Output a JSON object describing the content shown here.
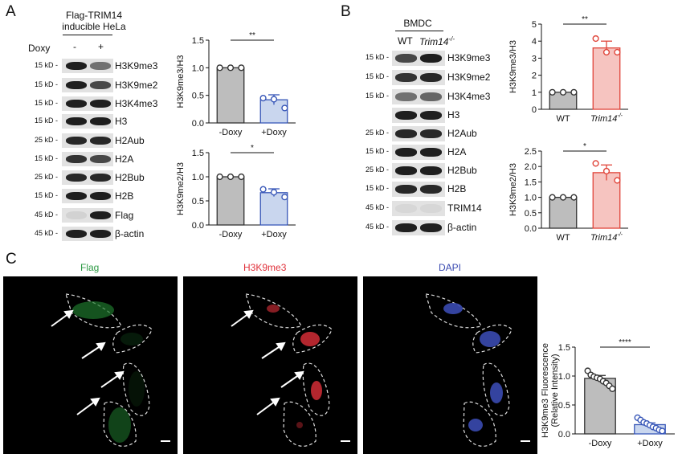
{
  "panels": {
    "A": "A",
    "B": "B",
    "C": "C"
  },
  "panel_a": {
    "title_line1": "Flag-TRIM14",
    "title_line2": "inducible HeLa",
    "doxy_label": "Doxy",
    "minus": "-",
    "plus": "+",
    "blots": [
      {
        "kd": "15 kD -",
        "protein": "H3K9me3"
      },
      {
        "kd": "15 kD -",
        "protein": "H3K9me2"
      },
      {
        "kd": "15 kD -",
        "protein": "H3K4me3"
      },
      {
        "kd": "15 kD -",
        "protein": "H3"
      },
      {
        "kd": "25 kD -",
        "protein": "H2Aub"
      },
      {
        "kd": "15 kD -",
        "protein": "H2A"
      },
      {
        "kd": "25 kD -",
        "protein": "H2Bub"
      },
      {
        "kd": "15 kD -",
        "protein": "H2B"
      },
      {
        "kd": "45 kD -",
        "protein": "Flag"
      },
      {
        "kd": "45 kD -",
        "protein": "β-actin"
      }
    ]
  },
  "panel_b": {
    "title": "BMDC",
    "wt": "WT",
    "ko": "Trim14",
    "ko_sup": "-/-",
    "blots": [
      {
        "kd": "15 kD -",
        "protein": "H3K9me3"
      },
      {
        "kd": "15 kD -",
        "protein": "H3K9me2"
      },
      {
        "kd": "15 kD -",
        "protein": "H3K4me3"
      },
      {
        "kd": "",
        "protein": "H3"
      },
      {
        "kd": "25 kD -",
        "protein": "H2Aub"
      },
      {
        "kd": "15 kD -",
        "protein": "H2A"
      },
      {
        "kd": "25 kD -",
        "protein": "H2Bub"
      },
      {
        "kd": "15 kD -",
        "protein": "H2B"
      },
      {
        "kd": "45 kD -",
        "protein": "TRIM14"
      },
      {
        "kd": "45 kD -",
        "protein": "β-actin"
      }
    ]
  },
  "panel_c": {
    "channels": [
      {
        "label": "Flag",
        "color": "#2e9a45"
      },
      {
        "label": "H3K9me3",
        "color": "#e0303a"
      },
      {
        "label": "DAPI",
        "color": "#3a4ab0"
      }
    ]
  },
  "chart_data": [
    {
      "id": "A-top",
      "type": "bar",
      "categories": [
        "-Doxy",
        "+Doxy"
      ],
      "values": [
        1.0,
        0.42
      ],
      "errors": [
        0.0,
        0.09
      ],
      "points": [
        [
          1.0,
          1.0,
          1.0
        ],
        [
          0.45,
          0.43,
          0.27
        ]
      ],
      "ylabel": "H3K9me3/H3",
      "ylim": [
        0,
        1.5
      ],
      "yticks": [
        "0.0",
        "0.5",
        "1.0",
        "1.5"
      ],
      "significance": "**",
      "bar_colors": [
        "#bdbdbd",
        "#c9d6ee"
      ],
      "edge_colors": [
        "#333333",
        "#3857b8"
      ]
    },
    {
      "id": "A-bottom",
      "type": "bar",
      "categories": [
        "-Doxy",
        "+Doxy"
      ],
      "values": [
        1.0,
        0.67
      ],
      "errors": [
        0.0,
        0.08
      ],
      "points": [
        [
          1.0,
          1.0,
          1.0
        ],
        [
          0.74,
          0.68,
          0.58
        ]
      ],
      "ylabel": "H3K9me2/H3",
      "ylim": [
        0,
        1.5
      ],
      "yticks": [
        "0.0",
        "0.5",
        "1.0",
        "1.5"
      ],
      "significance": "*",
      "bar_colors": [
        "#bdbdbd",
        "#c9d6ee"
      ],
      "edge_colors": [
        "#333333",
        "#3857b8"
      ]
    },
    {
      "id": "B-top",
      "type": "bar",
      "categories": [
        "WT",
        "Trim14-/-"
      ],
      "values": [
        1.0,
        3.6
      ],
      "errors": [
        0.0,
        0.4
      ],
      "points": [
        [
          1.0,
          1.0,
          1.0
        ],
        [
          4.15,
          3.35,
          3.35
        ]
      ],
      "ylabel": "H3K9me3/H3",
      "ylim": [
        0,
        5
      ],
      "yticks": [
        "0",
        "1",
        "2",
        "3",
        "4",
        "5"
      ],
      "significance": "**",
      "bar_colors": [
        "#bdbdbd",
        "#f6c4c0"
      ],
      "edge_colors": [
        "#333333",
        "#e0453a"
      ]
    },
    {
      "id": "B-bottom",
      "type": "bar",
      "categories": [
        "WT",
        "Trim14-/-"
      ],
      "values": [
        1.0,
        1.8
      ],
      "errors": [
        0.0,
        0.25
      ],
      "points": [
        [
          1.0,
          1.0,
          1.0
        ],
        [
          2.1,
          1.85,
          1.55
        ]
      ],
      "ylabel": "H3K9me2/H3",
      "ylim": [
        0,
        2.5
      ],
      "yticks": [
        "0.0",
        "0.5",
        "1.0",
        "1.5",
        "2.0",
        "2.5"
      ],
      "significance": "*",
      "bar_colors": [
        "#bdbdbd",
        "#f6c4c0"
      ],
      "edge_colors": [
        "#333333",
        "#e0453a"
      ]
    },
    {
      "id": "C",
      "type": "bar",
      "categories": [
        "-Doxy",
        "+Doxy"
      ],
      "values": [
        0.96,
        0.16
      ],
      "errors": [
        0.05,
        0.03
      ],
      "points": [
        [
          1.09,
          1.02,
          0.99,
          0.97,
          0.95,
          0.91,
          0.88,
          0.83,
          0.78
        ],
        [
          0.28,
          0.24,
          0.2,
          0.18,
          0.15,
          0.12,
          0.1,
          0.07,
          0.05
        ]
      ],
      "ylabel": "H3K9me3 Fluorescence\n(Relative  Intensity)",
      "ylim": [
        0,
        1.5
      ],
      "yticks": [
        "0.0",
        "0.5",
        "1.0",
        "1.5"
      ],
      "significance": "****",
      "bar_colors": [
        "#bdbdbd",
        "#c9d6ee"
      ],
      "edge_colors": [
        "#333333",
        "#3857b8"
      ]
    }
  ]
}
